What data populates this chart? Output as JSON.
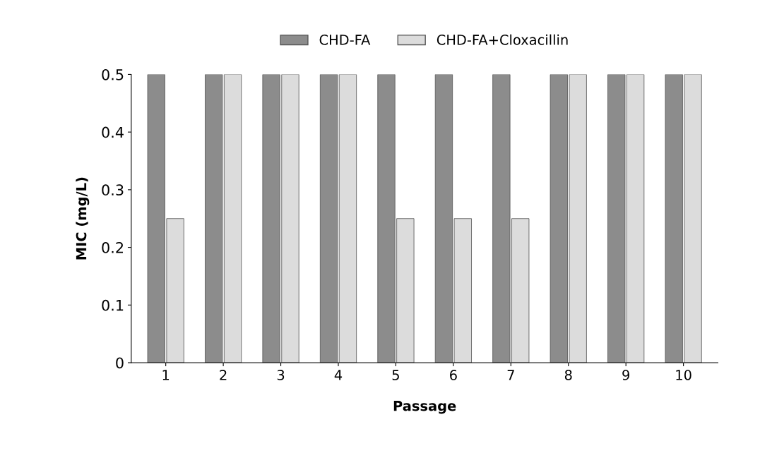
{
  "chart_data": {
    "type": "bar",
    "xlabel": "Passage",
    "ylabel": "MIC (mg/L)",
    "categories": [
      "1",
      "2",
      "3",
      "4",
      "5",
      "6",
      "7",
      "8",
      "9",
      "10"
    ],
    "series": [
      {
        "name": "CHD-FA",
        "color": "#8c8c8c",
        "values": [
          0.5,
          0.5,
          0.5,
          0.5,
          0.5,
          0.5,
          0.5,
          0.5,
          0.5,
          0.5
        ]
      },
      {
        "name": "CHD-FA+Cloxacillin",
        "color": "#dcdcdc",
        "values": [
          0.25,
          0.5,
          0.5,
          0.5,
          0.25,
          0.25,
          0.25,
          0.5,
          0.5,
          0.5
        ]
      }
    ],
    "ylim": [
      0,
      0.5
    ],
    "yticks": [
      {
        "value": 0,
        "label": "0"
      },
      0.1,
      0.2,
      0.3,
      0.4,
      0.5
    ],
    "grid": false,
    "legend": "top"
  }
}
